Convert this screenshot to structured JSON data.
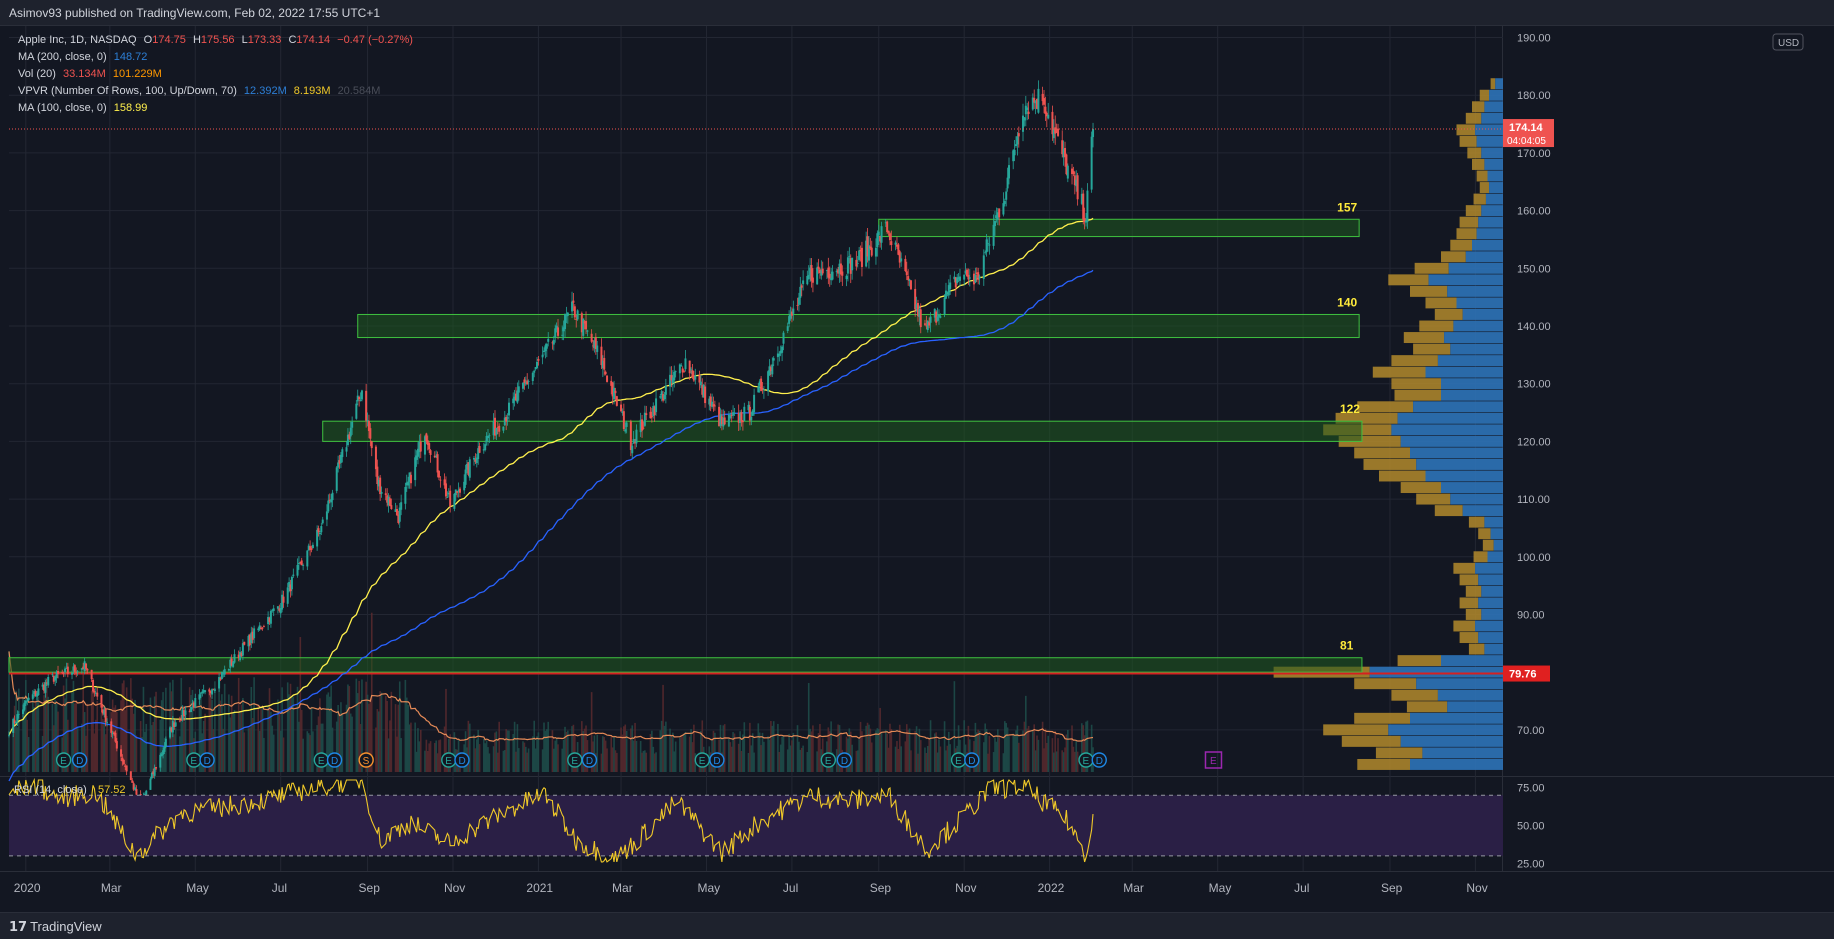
{
  "header": {
    "published": "Asimov93 published on TradingView.com, Feb 02, 2022 17:55 UTC+1"
  },
  "footer": {
    "brand": "TradingView"
  },
  "legend": {
    "symbol": "Apple Inc, 1D, NASDAQ",
    "ohlc": {
      "o_label": "O",
      "o": "174.75",
      "h_label": "H",
      "h": "175.56",
      "l_label": "L",
      "l": "173.33",
      "c_label": "C",
      "c": "174.14",
      "chg": "−0.47 (−0.27%)"
    },
    "ma200": {
      "label": "MA (200, close, 0)",
      "value": "148.72"
    },
    "vol": {
      "label": "Vol (20)",
      "v1": "33.134M",
      "v2": "101.229M"
    },
    "vpvr": {
      "label": "VPVR (Number Of Rows, 100, Up/Down, 70)",
      "v1": "12.392M",
      "v2": "8.193M",
      "v3": "20.584M"
    },
    "ma100": {
      "label": "MA (100, close, 0)",
      "value": "158.99"
    }
  },
  "colors": {
    "background": "#131722",
    "grid": "#232733",
    "up": "#26a69a",
    "down": "#ef5350",
    "ma100": "#fff04d",
    "ma200": "#2962ff",
    "zone_fill": "#1f5a1f",
    "zone_stroke": "#3fc23f",
    "redline": "#d62020",
    "zone_label": "#ffeb3b",
    "rsi": "#f0c929",
    "rsi_band": "#2a1f45",
    "vpvr_up": "#2e73b8",
    "vpvr_down": "#b38a2c",
    "vol_ma": "#e58a57",
    "earnings_icon": "#1e88e5",
    "dividend_icon": "#f7922e",
    "event_icon": "#9c27b0"
  },
  "chart_data": [
    {
      "type": "candlestick",
      "title": "Apple Inc, 1D, NASDAQ",
      "currency": "USD",
      "y_ticks": [
        "190.00",
        "180.00",
        "170.00",
        "160.00",
        "150.00",
        "140.00",
        "130.00",
        "120.00",
        "110.00",
        "100.00",
        "90.00",
        "80.00",
        "70.00"
      ],
      "ylim": [
        62,
        192
      ],
      "x_ticks": [
        "2020",
        "Mar",
        "May",
        "Jul",
        "Sep",
        "Nov",
        "2021",
        "Mar",
        "May",
        "Jul",
        "Sep",
        "Nov",
        "2022",
        "Mar",
        "May",
        "Jul",
        "Sep",
        "Nov"
      ],
      "x_tick_dates": [
        "2020-01-01",
        "2020-03-01",
        "2020-05-01",
        "2020-07-01",
        "2020-09-01",
        "2020-11-01",
        "2021-01-01",
        "2021-03-01",
        "2021-05-01",
        "2021-07-01",
        "2021-09-01",
        "2021-11-01",
        "2022-01-01",
        "2022-03-01",
        "2022-05-01",
        "2022-07-01",
        "2022-09-01",
        "2022-11-01"
      ],
      "price_path": {
        "dates": [
          "2019-12-20",
          "2020-01-02",
          "2020-01-20",
          "2020-02-12",
          "2020-02-24",
          "2020-03-23",
          "2020-04-15",
          "2020-05-15",
          "2020-06-10",
          "2020-07-01",
          "2020-07-30",
          "2020-08-28",
          "2020-09-08",
          "2020-09-23",
          "2020-10-12",
          "2020-10-30",
          "2020-11-20",
          "2020-12-10",
          "2021-01-26",
          "2021-02-15",
          "2021-03-08",
          "2021-04-16",
          "2021-05-12",
          "2021-06-01",
          "2021-07-14",
          "2021-08-16",
          "2021-09-07",
          "2021-10-04",
          "2021-10-29",
          "2021-11-10",
          "2021-12-01",
          "2021-12-13",
          "2021-12-27",
          "2022-01-05",
          "2022-01-27",
          "2022-02-01"
        ],
        "prices": [
          70,
          75,
          79,
          81,
          74,
          57,
          71,
          78,
          86,
          92,
          105,
          129,
          113,
          107,
          122,
          109,
          119,
          125,
          143,
          134,
          120,
          134,
          123,
          125,
          149,
          151,
          157,
          139,
          149,
          148,
          164,
          178,
          180,
          173,
          159,
          174.14
        ]
      },
      "last_price": {
        "value": "174.14",
        "countdown": "04:04:05"
      },
      "red_level": {
        "value": "79.76"
      },
      "ma100": {
        "label": "MA (100, close, 0)",
        "last": 158.99
      },
      "ma200": {
        "label": "MA (200, close, 0)",
        "last": 148.72
      },
      "zones": [
        {
          "label": "157",
          "low": 155.5,
          "high": 158.5,
          "start": "2021-09-01",
          "end": "2022-08-10"
        },
        {
          "label": "140",
          "low": 138,
          "high": 142,
          "start": "2020-08-25",
          "end": "2022-08-10"
        },
        {
          "label": "122",
          "low": 120,
          "high": 123.5,
          "start": "2020-07-31",
          "end": "2022-08-12"
        },
        {
          "label": "81",
          "low": 80,
          "high": 82.5,
          "start": "2019-12-20",
          "end": "2022-08-12"
        }
      ],
      "earnings_events": [
        {
          "date": "2020-01-28",
          "label": "E"
        },
        {
          "date": "2020-04-30",
          "label": "E"
        },
        {
          "date": "2020-07-30",
          "label": "E"
        },
        {
          "date": "2020-10-29",
          "label": "E"
        },
        {
          "date": "2021-01-27",
          "label": "E"
        },
        {
          "date": "2021-04-28",
          "label": "E"
        },
        {
          "date": "2021-07-27",
          "label": "E"
        },
        {
          "date": "2021-10-28",
          "label": "E"
        },
        {
          "date": "2022-01-27",
          "label": "E"
        }
      ],
      "dividend_events": [
        {
          "date": "2020-02-07",
          "label": "D"
        },
        {
          "date": "2020-05-08",
          "label": "D"
        },
        {
          "date": "2020-08-07",
          "label": "D"
        },
        {
          "date": "2020-11-06",
          "label": "D"
        },
        {
          "date": "2021-02-05",
          "label": "D"
        },
        {
          "date": "2021-05-07",
          "label": "D"
        },
        {
          "date": "2021-08-06",
          "label": "D"
        },
        {
          "date": "2021-11-05",
          "label": "D"
        },
        {
          "date": "2022-02-04",
          "label": "D"
        }
      ],
      "split_event": {
        "date": "2020-08-31",
        "label": "S"
      },
      "upcoming_event": {
        "date": "2022-04-28",
        "label": "E"
      }
    },
    {
      "type": "line",
      "title": "RSI (14, close)",
      "value": "57.52",
      "y_ticks": [
        "75.00",
        "50.00",
        "25.00"
      ],
      "ylim": [
        20,
        82
      ],
      "bands": [
        70,
        30
      ],
      "series": [
        {
          "dates": [
            "2019-12-20",
            "2020-01-05",
            "2020-01-25",
            "2020-02-20",
            "2020-03-20",
            "2020-04-20",
            "2020-05-20",
            "2020-06-25",
            "2020-07-20",
            "2020-08-10",
            "2020-08-28",
            "2020-09-10",
            "2020-10-01",
            "2020-10-30",
            "2020-11-20",
            "2020-12-15",
            "2021-01-05",
            "2021-01-28",
            "2021-02-25",
            "2021-03-10",
            "2021-04-10",
            "2021-05-12",
            "2021-06-10",
            "2021-07-15",
            "2021-08-10",
            "2021-09-08",
            "2021-10-05",
            "2021-10-25",
            "2021-11-20",
            "2021-12-13",
            "2021-12-30",
            "2022-01-15",
            "2022-01-27",
            "2022-02-01"
          ],
          "values": [
            70,
            78,
            68,
            72,
            30,
            58,
            62,
            68,
            74,
            78,
            80,
            40,
            52,
            38,
            50,
            62,
            71,
            40,
            28,
            38,
            66,
            32,
            54,
            70,
            66,
            70,
            34,
            50,
            74,
            76,
            64,
            52,
            30,
            57.52
          ]
        }
      ]
    },
    {
      "type": "bar",
      "title": "VPVR (Number Of Rows, 100, Up/Down, 70)",
      "y_unit": "price",
      "rows": [
        {
          "price": 182,
          "up": 3,
          "down": 5
        },
        {
          "price": 180,
          "up": 6,
          "down": 9
        },
        {
          "price": 178,
          "up": 8,
          "down": 12
        },
        {
          "price": 176,
          "up": 10,
          "down": 14
        },
        {
          "price": 174,
          "up": 12,
          "down": 18
        },
        {
          "price": 172,
          "up": 11,
          "down": 17
        },
        {
          "price": 170,
          "up": 9,
          "down": 14
        },
        {
          "price": 168,
          "up": 8,
          "down": 12
        },
        {
          "price": 166,
          "up": 7,
          "down": 10
        },
        {
          "price": 164,
          "up": 6,
          "down": 9
        },
        {
          "price": 162,
          "up": 8,
          "down": 11
        },
        {
          "price": 160,
          "up": 10,
          "down": 14
        },
        {
          "price": 158,
          "up": 12,
          "down": 16
        },
        {
          "price": 156,
          "up": 13,
          "down": 17
        },
        {
          "price": 154,
          "up": 14,
          "down": 20
        },
        {
          "price": 152,
          "up": 16,
          "down": 24
        },
        {
          "price": 150,
          "up": 22,
          "down": 35
        },
        {
          "price": 148,
          "up": 26,
          "down": 48
        },
        {
          "price": 146,
          "up": 24,
          "down": 36
        },
        {
          "price": 144,
          "up": 20,
          "down": 30
        },
        {
          "price": 142,
          "up": 18,
          "down": 26
        },
        {
          "price": 140,
          "up": 22,
          "down": 32
        },
        {
          "price": 138,
          "up": 26,
          "down": 38
        },
        {
          "price": 136,
          "up": 24,
          "down": 34
        },
        {
          "price": 134,
          "up": 30,
          "down": 42
        },
        {
          "price": 132,
          "up": 34,
          "down": 50
        },
        {
          "price": 130,
          "up": 32,
          "down": 40
        },
        {
          "price": 128,
          "up": 30,
          "down": 40
        },
        {
          "price": 126,
          "up": 36,
          "down": 58
        },
        {
          "price": 124,
          "up": 40,
          "down": 68
        },
        {
          "price": 122,
          "up": 44,
          "down": 72
        },
        {
          "price": 120,
          "up": 40,
          "down": 66
        },
        {
          "price": 118,
          "up": 36,
          "down": 60
        },
        {
          "price": 116,
          "up": 34,
          "down": 56
        },
        {
          "price": 114,
          "up": 30,
          "down": 50
        },
        {
          "price": 112,
          "up": 26,
          "down": 40
        },
        {
          "price": 110,
          "up": 22,
          "down": 34
        },
        {
          "price": 108,
          "up": 18,
          "down": 26
        },
        {
          "price": 106,
          "up": 10,
          "down": 12
        },
        {
          "price": 104,
          "up": 8,
          "down": 8
        },
        {
          "price": 102,
          "up": 7,
          "down": 6
        },
        {
          "price": 100,
          "up": 9,
          "down": 10
        },
        {
          "price": 98,
          "up": 14,
          "down": 18
        },
        {
          "price": 96,
          "up": 12,
          "down": 16
        },
        {
          "price": 94,
          "up": 10,
          "down": 14
        },
        {
          "price": 92,
          "up": 12,
          "down": 16
        },
        {
          "price": 90,
          "up": 10,
          "down": 14
        },
        {
          "price": 88,
          "up": 14,
          "down": 18
        },
        {
          "price": 86,
          "up": 12,
          "down": 16
        },
        {
          "price": 84,
          "up": 10,
          "down": 12
        },
        {
          "price": 82,
          "up": 28,
          "down": 40
        },
        {
          "price": 80,
          "up": 62,
          "down": 86
        },
        {
          "price": 78,
          "up": 40,
          "down": 56
        },
        {
          "price": 76,
          "up": 30,
          "down": 42
        },
        {
          "price": 74,
          "up": 26,
          "down": 36
        },
        {
          "price": 72,
          "up": 36,
          "down": 60
        },
        {
          "price": 70,
          "up": 42,
          "down": 74
        },
        {
          "price": 68,
          "up": 38,
          "down": 66
        },
        {
          "price": 66,
          "up": 30,
          "down": 52
        },
        {
          "price": 64,
          "up": 34,
          "down": 60
        }
      ]
    }
  ]
}
